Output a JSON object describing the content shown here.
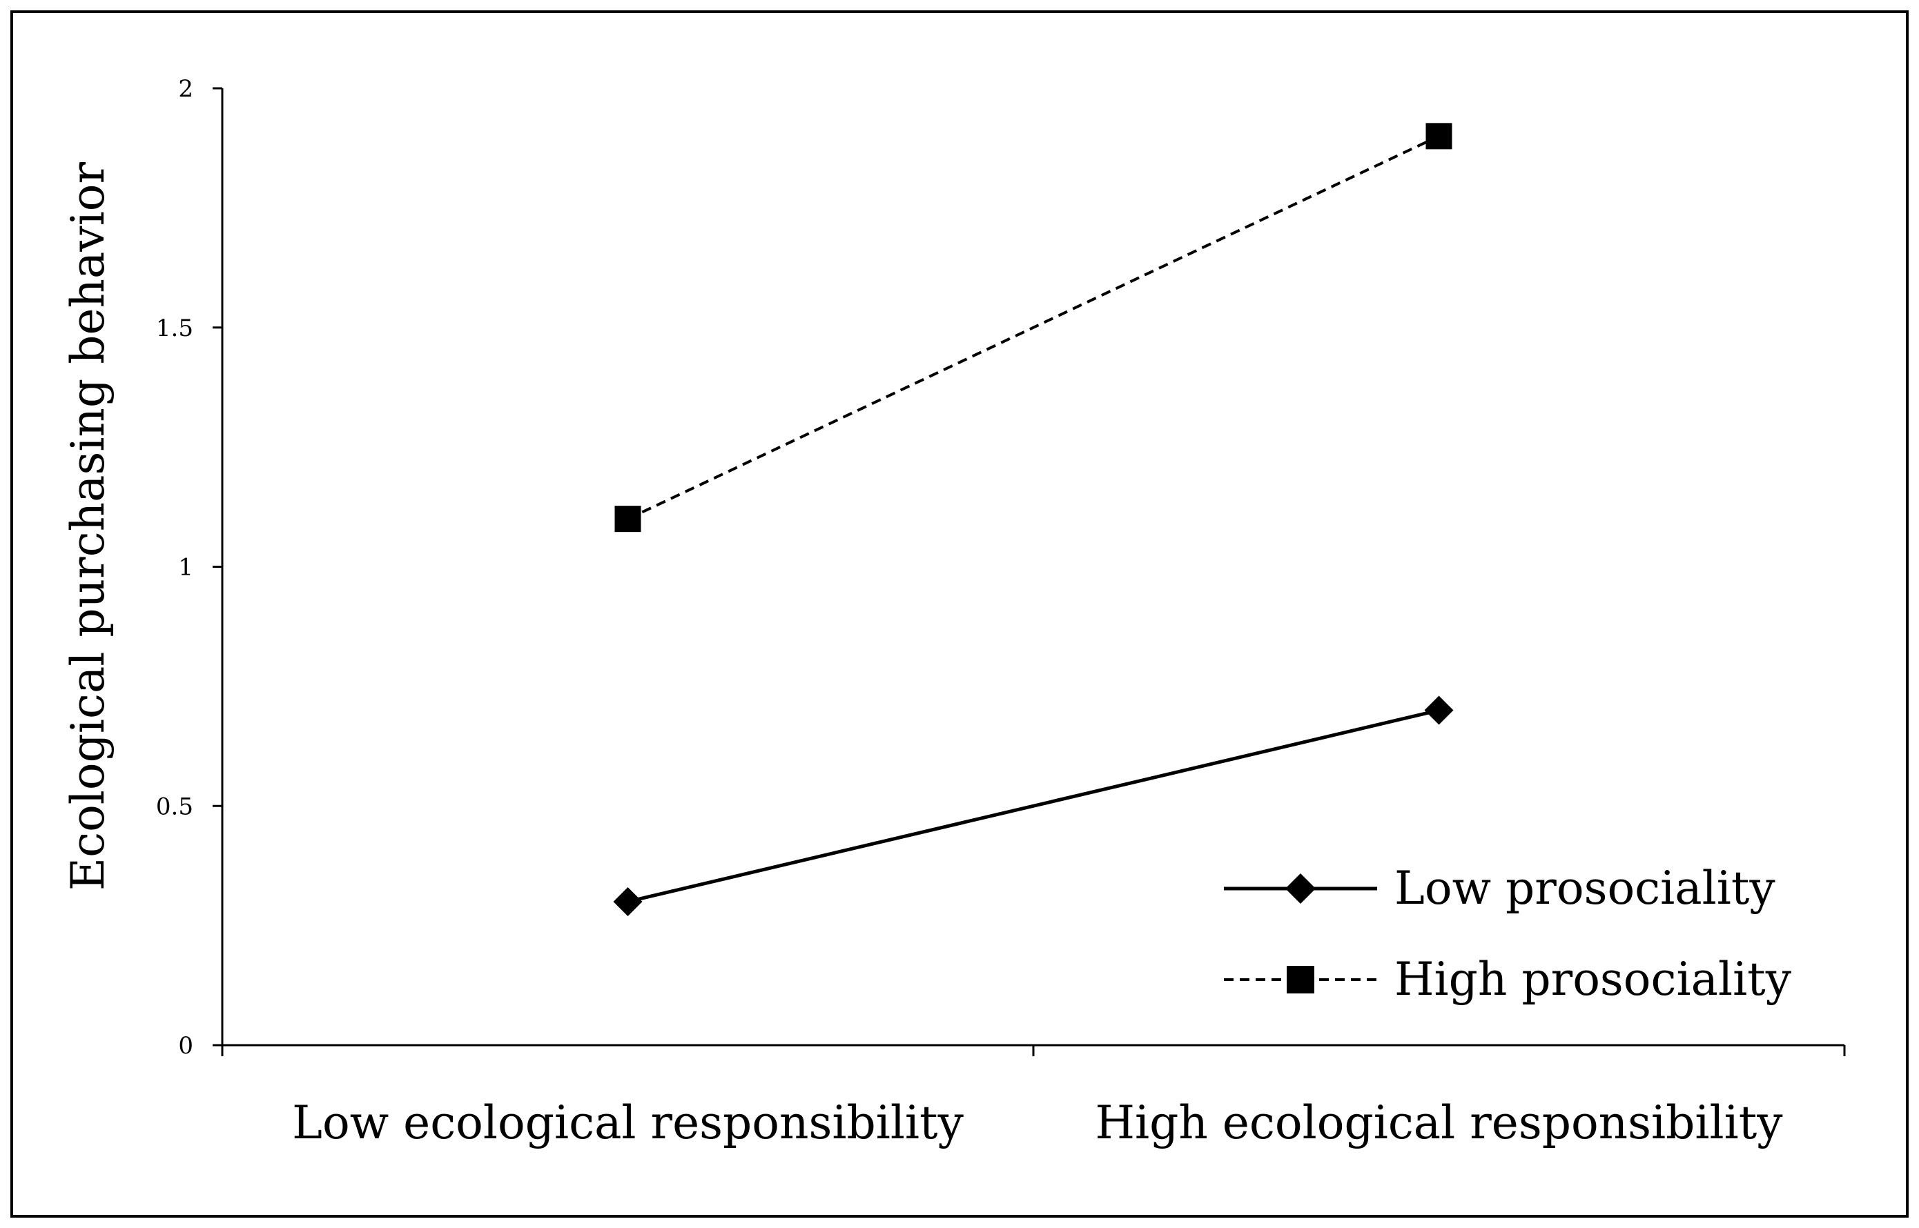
{
  "chart_data": {
    "type": "line",
    "categories": [
      "Low ecological responsibility",
      "High ecological responsibility"
    ],
    "ylabel": "Ecological purchasing behavior",
    "xlabel": "",
    "ylim": [
      0,
      2
    ],
    "yticks": [
      "0",
      "0.5",
      "1",
      "1.5",
      "2"
    ],
    "grid": false,
    "legend_position": "bottom-right",
    "series": [
      {
        "name": "Low prosociality",
        "values": [
          0.3,
          0.7
        ],
        "line_style": "solid",
        "marker": "diamond",
        "color": "#000000"
      },
      {
        "name": "High prosociality",
        "values": [
          1.1,
          1.9
        ],
        "line_style": "dashed",
        "marker": "square",
        "color": "#000000"
      }
    ]
  }
}
